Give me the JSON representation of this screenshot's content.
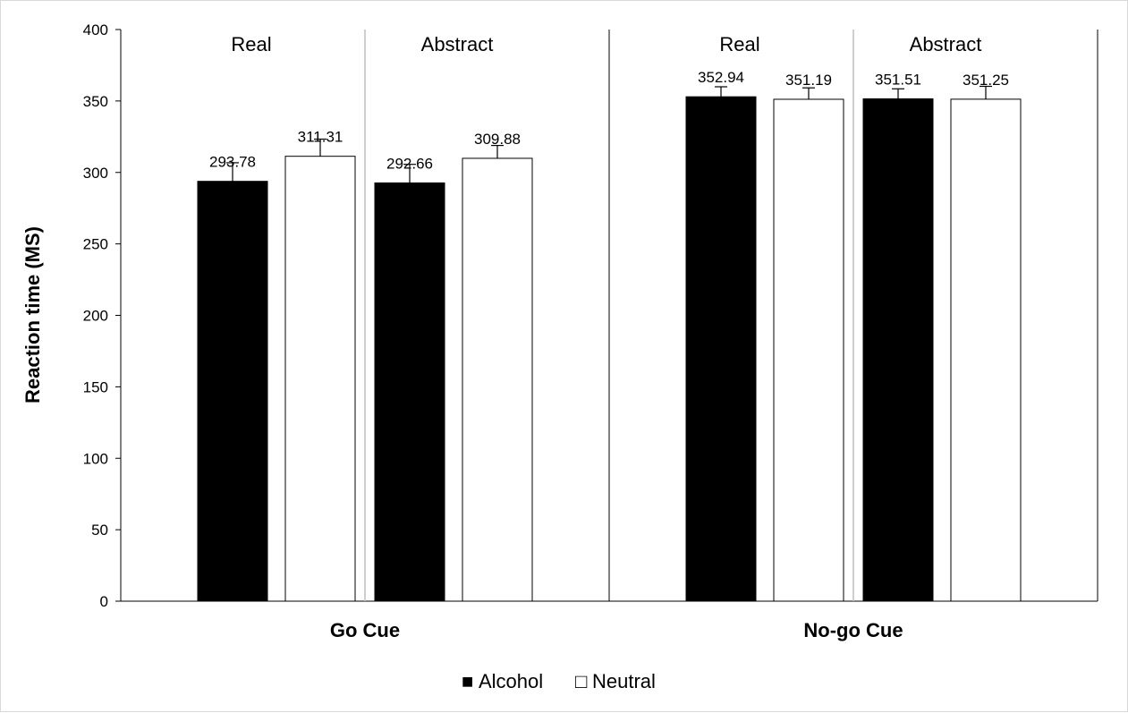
{
  "chart_data": {
    "type": "bar",
    "title": "",
    "ylabel": "Reaction time (MS)",
    "ylim": [
      0,
      400
    ],
    "yticks": [
      0,
      50,
      100,
      150,
      200,
      250,
      300,
      350,
      400
    ],
    "grid": false,
    "legend_position": "bottom",
    "colors": {
      "Alcohol": "#000000",
      "Neutral": "#ffffff",
      "bar_border": "#000000",
      "subgroup_divider": "#bfbfbf"
    },
    "groups": [
      {
        "label": "Go Cue",
        "subgroups": [
          {
            "label": "Real",
            "bars": [
              {
                "series": "Alcohol",
                "value": 293.78,
                "label": "293.78",
                "error": 13
              },
              {
                "series": "Neutral",
                "value": 311.31,
                "label": "311.31",
                "error": 12
              }
            ]
          },
          {
            "label": "Abstract",
            "bars": [
              {
                "series": "Alcohol",
                "value": 292.66,
                "label": "292.66",
                "error": 13
              },
              {
                "series": "Neutral",
                "value": 309.88,
                "label": "309.88",
                "error": 9
              }
            ]
          }
        ]
      },
      {
        "label": "No-go Cue",
        "subgroups": [
          {
            "label": "Real",
            "bars": [
              {
                "series": "Alcohol",
                "value": 352.94,
                "label": "352.94",
                "error": 7
              },
              {
                "series": "Neutral",
                "value": 351.19,
                "label": "351.19",
                "error": 8
              }
            ]
          },
          {
            "label": "Abstract",
            "bars": [
              {
                "series": "Alcohol",
                "value": 351.51,
                "label": "351.51",
                "error": 7
              },
              {
                "series": "Neutral",
                "value": 351.25,
                "label": "351.25",
                "error": 9
              }
            ]
          }
        ]
      }
    ],
    "legend": [
      {
        "name": "Alcohol",
        "symbol": "■"
      },
      {
        "name": "Neutral",
        "symbol": "□"
      }
    ]
  }
}
